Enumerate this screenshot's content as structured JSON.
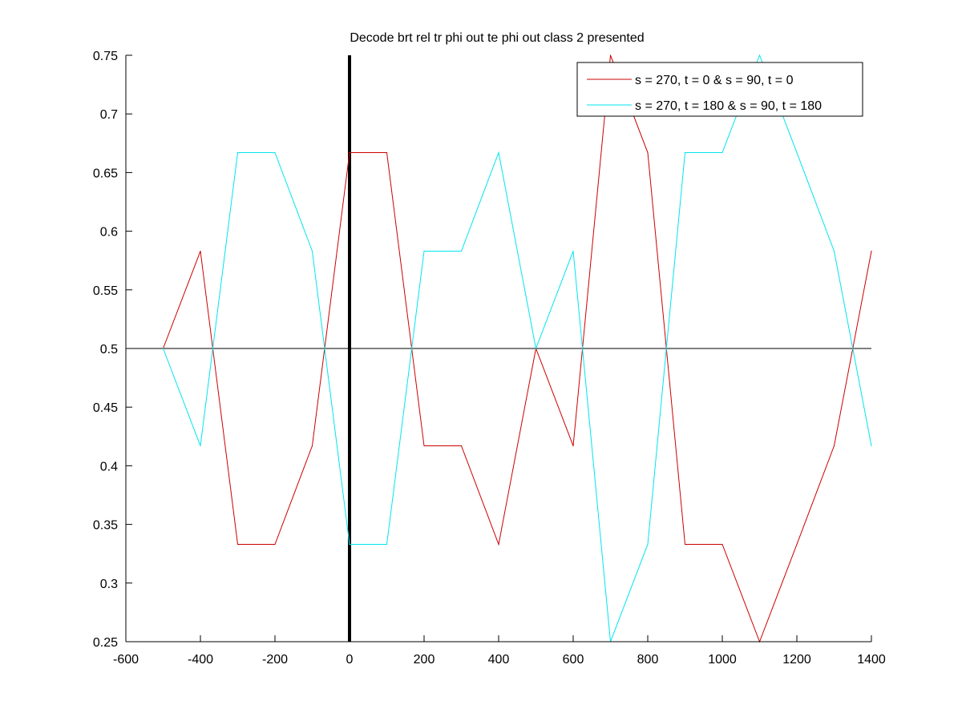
{
  "chart_data": {
    "type": "line",
    "title": "Decode brt rel tr phi out te phi out  class 2 presented",
    "xlabel": "",
    "ylabel": "",
    "xlim": [
      -600,
      1400
    ],
    "ylim": [
      0.25,
      0.75
    ],
    "xticks": [
      -600,
      -400,
      -200,
      0,
      200,
      400,
      600,
      800,
      1000,
      1200,
      1400
    ],
    "yticks": [
      0.25,
      0.3,
      0.35,
      0.4,
      0.45,
      0.5,
      0.55,
      0.6,
      0.65,
      0.7,
      0.75
    ],
    "xtick_labels": [
      "-600",
      "-400",
      "-200",
      "0",
      "200",
      "400",
      "600",
      "800",
      "1000",
      "1200",
      "1400"
    ],
    "ytick_labels": [
      "0.25",
      "0.3",
      "0.35",
      "0.4",
      "0.45",
      "0.5",
      "0.55",
      "0.6",
      "0.65",
      "0.7",
      "0.75"
    ],
    "grid": false,
    "legend_position": "top-right",
    "reference_lines": {
      "horizontal_y": 0.5,
      "vertical_x": 0
    },
    "x": [
      -500,
      -400,
      -300,
      -200,
      -100,
      0,
      100,
      200,
      300,
      400,
      500,
      600,
      700,
      800,
      900,
      1000,
      1100,
      1200,
      1300,
      1400
    ],
    "series": [
      {
        "name": "s = 270, t = 0 & s = 90, t = 0",
        "color": "#cc0000",
        "values": [
          0.5,
          0.583,
          0.333,
          0.333,
          0.417,
          0.667,
          0.667,
          0.417,
          0.417,
          0.333,
          0.5,
          0.417,
          0.75,
          0.667,
          0.333,
          0.333,
          0.25,
          0.333,
          0.417,
          0.583
        ]
      },
      {
        "name": "s = 270, t = 180 & s = 90, t = 180",
        "color": "#00e5ee",
        "values": [
          0.5,
          0.417,
          0.667,
          0.667,
          0.583,
          0.333,
          0.333,
          0.583,
          0.583,
          0.667,
          0.5,
          0.583,
          0.25,
          0.333,
          0.667,
          0.667,
          0.75,
          0.667,
          0.583,
          0.417
        ]
      }
    ]
  }
}
